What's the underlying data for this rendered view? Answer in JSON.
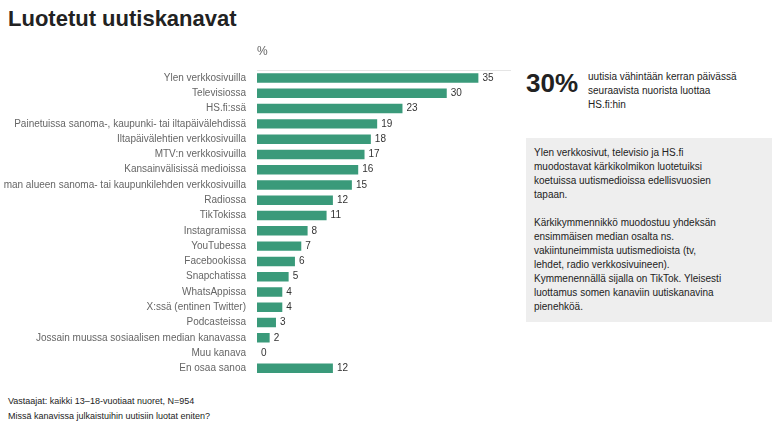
{
  "chart_data": {
    "type": "bar",
    "orientation": "horizontal",
    "title": "Luotetut uutiskanavat",
    "xlabel": "%",
    "categories": [
      "Ylen verkkosivuilla",
      "Televisiossa",
      "HS.fi:ssä",
      "Painetuissa sanoma-, kaupunki- tai iltapäivälehdissä",
      "Iltapäivälehtien verkkosivuilla",
      "MTV:n verkkosivuilla",
      "Kansainvälisissä medioissa",
      "Oman alueen sanoma- tai kaupunkilehden verkkosivuilla",
      "Radiossa",
      "TikTokissa",
      "Instagramissa",
      "YouTubessa",
      "Facebookissa",
      "Snapchatissa",
      "WhatsAppissa",
      "X:ssä (entinen Twitter)",
      "Podcasteissa",
      "Jossain muussa sosiaalisen median kanavassa",
      "Muu kanava",
      "En osaa sanoa"
    ],
    "values": [
      35,
      30,
      23,
      19,
      18,
      17,
      16,
      15,
      12,
      11,
      8,
      7,
      6,
      5,
      4,
      4,
      3,
      2,
      0,
      12
    ],
    "color": "#3a9a7a",
    "xlim": [
      0,
      40
    ],
    "grid": false,
    "data_labels": true,
    "tick_labels": "y",
    "annotations": [
      "30%",
      "uutisia vähintään kerran päivässä\nseuraavista nuorista luottaa\nHS.fi:hin",
      "Ylen verkkosivut, televisio ja HS.fi\nmuodostavat kärkikolmikon luotetuiksi\nkoetuissa uutismedioissa edellisvuosien\ntapaan.",
      "Kärkikymmennikkö muodostuu yhdeksän\nensimmäisen median osalta ns.\nvakiintuneimmista uutismedioista (tv,\nlehdet, radio verkkosivuineen).\nKymmenennällä sijalla on TikTok. Yleisesti\nluottamus somen kanaviin uutiskanavina\npienehköä.",
      "Vastaajat: kaikki 13–18-vuotiaat nuoret, N=954",
      "Missä kanavissa julkaistuihin uutisiin luotat eniten?"
    ]
  }
}
